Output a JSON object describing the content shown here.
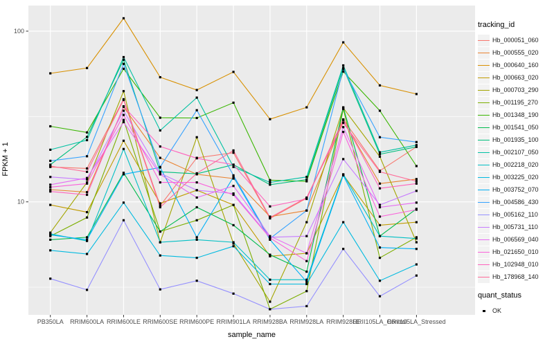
{
  "figure": {
    "panel_background": "#EBEBEB",
    "grid_color": "#FFFFFF",
    "axis_text_color": "#4D4D4D",
    "tick_color": "#333333",
    "point_color": "#000000"
  },
  "chart_data": {
    "type": "line",
    "title": "",
    "xlabel": "sample_name",
    "ylabel": "FPKM + 1",
    "y_scale": "log10",
    "y_ticks": [
      100,
      10
    ],
    "y_minor": [
      31.623,
      3.1623
    ],
    "ylim": [
      2.1,
      141
    ],
    "grid": true,
    "legend_position": "right",
    "categories": [
      "PB350LA",
      "RRIM600LA",
      "RRIM600LE",
      "RRIM600SE",
      "RRIM600PE",
      "RRIM901LA",
      "RRIM928BA",
      "RRIM928LA",
      "RRIM928LE",
      "RRII105LA_Control",
      "RRII105LA_Stressed"
    ],
    "series": [
      {
        "name": "Hb_000051_060",
        "color": "#F8766D",
        "values": [
          16.0,
          15.7,
          39.9,
          9.5,
          18.1,
          19.4,
          8.0,
          10.5,
          30.4,
          15.2,
          21.0
        ]
      },
      {
        "name": "Hb_000555_020",
        "color": "#EA8331",
        "values": [
          11.8,
          11.4,
          36.0,
          18.1,
          14.5,
          13.7,
          8.2,
          8.9,
          30.0,
          12.8,
          13.6
        ]
      },
      {
        "name": "Hb_000640_160",
        "color": "#D89000",
        "values": [
          56.6,
          60.8,
          119.0,
          53.7,
          45.2,
          57.7,
          30.5,
          35.8,
          86.0,
          48.1,
          42.8
        ]
      },
      {
        "name": "Hb_000663_020",
        "color": "#C09B00",
        "values": [
          9.6,
          8.7,
          22.8,
          9.8,
          11.7,
          9.6,
          4.8,
          5.0,
          14.4,
          7.3,
          7.6
        ]
      },
      {
        "name": "Hb_000703_290",
        "color": "#A3A500",
        "values": [
          6.6,
          13.0,
          44.5,
          5.8,
          23.9,
          5.7,
          2.6,
          7.6,
          35.5,
          18.4,
          5.8
        ]
      },
      {
        "name": "Hb_001195_270",
        "color": "#7CAE00",
        "values": [
          6.3,
          8.1,
          30.2,
          6.7,
          7.8,
          9.6,
          2.35,
          3.0,
          35.0,
          4.7,
          6.2
        ]
      },
      {
        "name": "Hb_001348_190",
        "color": "#39B600",
        "values": [
          27.7,
          25.5,
          60.2,
          31.1,
          31.0,
          38.1,
          13.4,
          13.2,
          58.0,
          34.2,
          16.2
        ]
      },
      {
        "name": "Hb_001541_050",
        "color": "#00BB4E",
        "values": [
          6.0,
          6.2,
          14.8,
          6.7,
          9.3,
          7.3,
          4.9,
          3.9,
          35.8,
          6.3,
          9.1
        ]
      },
      {
        "name": "Hb_001935_100",
        "color": "#00BF7D",
        "values": [
          16.5,
          24.0,
          68.0,
          15.0,
          14.6,
          16.5,
          12.6,
          13.5,
          61.0,
          19.0,
          21.0
        ]
      },
      {
        "name": "Hb_002107_050",
        "color": "#00C1A3",
        "values": [
          20.2,
          23.0,
          70.5,
          26.2,
          40.8,
          16.0,
          13.0,
          14.0,
          63.0,
          19.5,
          21.5
        ]
      },
      {
        "name": "Hb_002218_020",
        "color": "#00BFC4",
        "values": [
          6.5,
          5.9,
          20.4,
          5.8,
          6.0,
          5.8,
          3.5,
          3.5,
          14.5,
          6.3,
          6.1
        ]
      },
      {
        "name": "Hb_003225_020",
        "color": "#00BAE0",
        "values": [
          5.2,
          4.95,
          9.9,
          4.85,
          4.7,
          5.5,
          3.3,
          3.3,
          7.6,
          3.45,
          4.3
        ]
      },
      {
        "name": "Hb_003752_070",
        "color": "#00B0F6",
        "values": [
          6.4,
          6.0,
          14.5,
          15.9,
          6.2,
          14.0,
          6.0,
          3.4,
          14.3,
          5.4,
          5.3
        ]
      },
      {
        "name": "Hb_004586_430",
        "color": "#35A2FF",
        "values": [
          17.4,
          18.5,
          64.3,
          16.0,
          34.4,
          14.3,
          6.1,
          8.9,
          60.0,
          23.9,
          22.4
        ]
      },
      {
        "name": "Hb_005162_110",
        "color": "#9590FF",
        "values": [
          3.55,
          3.05,
          7.8,
          3.07,
          3.45,
          2.9,
          2.35,
          2.45,
          5.3,
          2.8,
          3.7
        ]
      },
      {
        "name": "Hb_005731_110",
        "color": "#C77CFF",
        "values": [
          14.0,
          13.5,
          34.2,
          14.7,
          11.7,
          11.2,
          6.2,
          6.3,
          17.8,
          9.6,
          11.6
        ]
      },
      {
        "name": "Hb_006569_040",
        "color": "#E76BF3",
        "values": [
          12.6,
          13.8,
          29.3,
          14.5,
          10.6,
          12.4,
          6.3,
          5.0,
          27.4,
          9.3,
          9.9
        ]
      },
      {
        "name": "Hb_021650_010",
        "color": "#FA62DB",
        "values": [
          12.2,
          12.8,
          32.3,
          13.0,
          13.0,
          11.0,
          6.15,
          4.5,
          25.7,
          8.2,
          9.0
        ]
      },
      {
        "name": "Hb_102948_010",
        "color": "#FF62BC",
        "values": [
          11.5,
          11.0,
          36.3,
          21.1,
          18.0,
          16.5,
          9.4,
          10.4,
          30.2,
          12.0,
          12.8
        ]
      },
      {
        "name": "Hb_178968_140",
        "color": "#FF6A98",
        "values": [
          16.2,
          15.0,
          39.5,
          9.3,
          14.7,
          20.0,
          8.1,
          10.6,
          29.0,
          15.0,
          13.2
        ]
      }
    ],
    "legend": {
      "tracking_title": "tracking_id",
      "quant_title": "quant_status",
      "quant_entries": [
        {
          "label": "OK"
        }
      ]
    }
  }
}
